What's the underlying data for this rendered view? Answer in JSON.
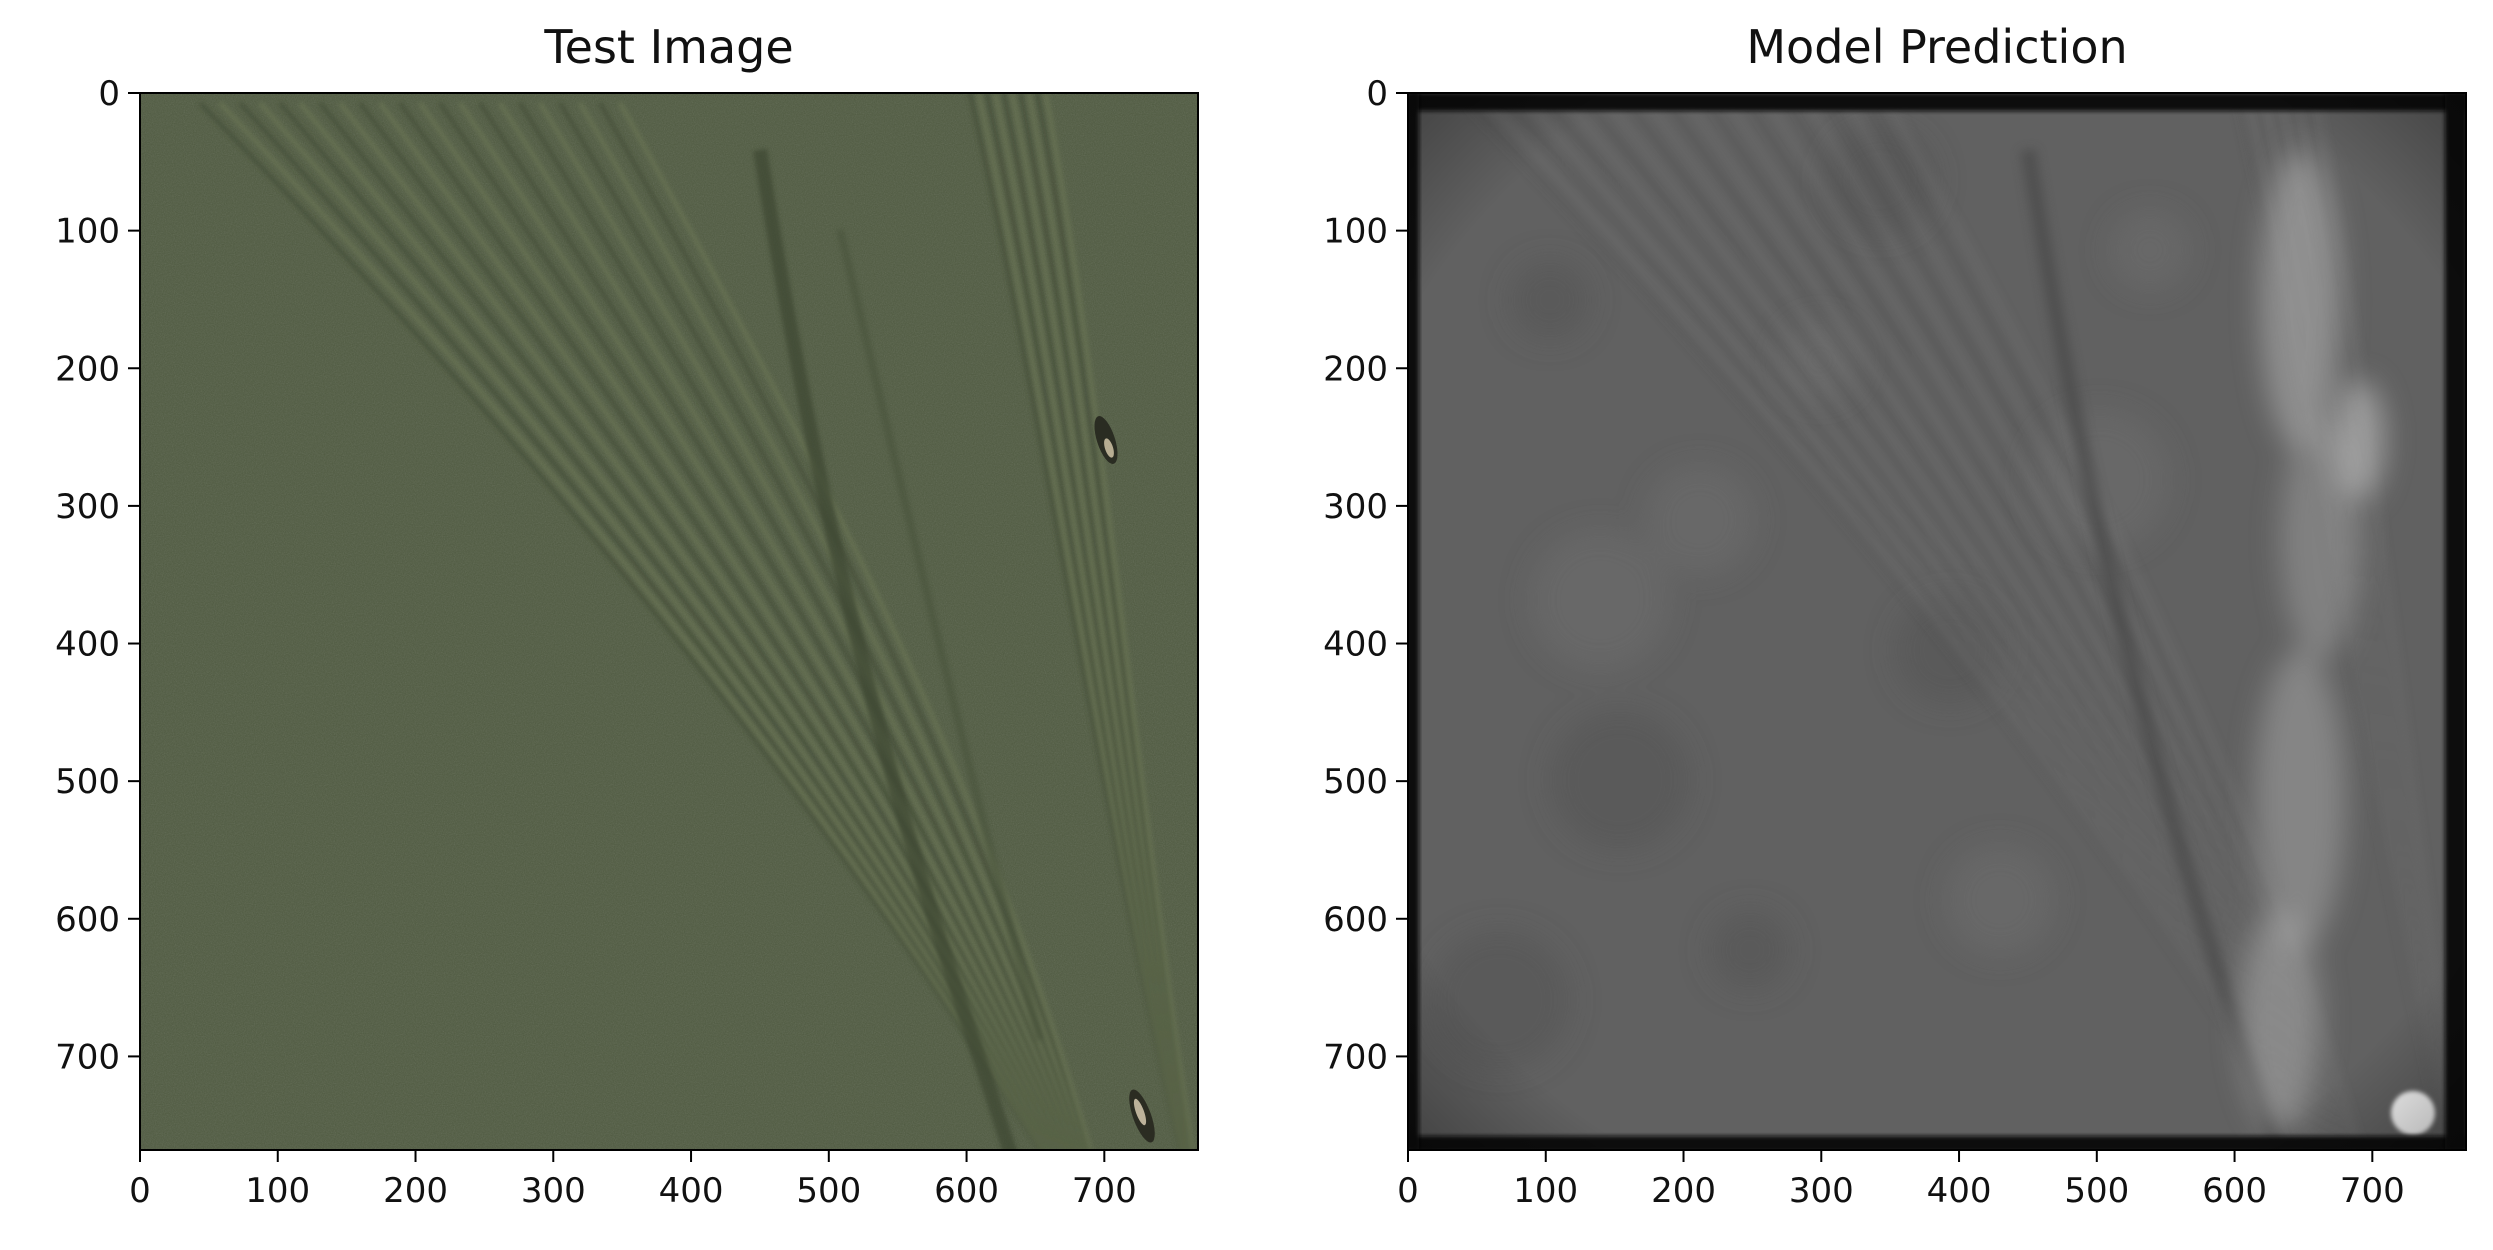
{
  "figure": {
    "panels": [
      {
        "title": "Test Image",
        "x_ticks": [
          "0",
          "100",
          "200",
          "300",
          "400",
          "500",
          "600",
          "700"
        ],
        "y_ticks": [
          "0",
          "100",
          "200",
          "300",
          "400",
          "500",
          "600",
          "700"
        ]
      },
      {
        "title": "Model Prediction",
        "x_ticks": [
          "0",
          "100",
          "200",
          "300",
          "400",
          "500",
          "600",
          "700"
        ],
        "y_ticks": [
          "0",
          "100",
          "200",
          "300",
          "400",
          "500",
          "600",
          "700"
        ]
      }
    ]
  },
  "chart_data": [
    {
      "type": "image",
      "title": "Test Image",
      "xlim": [
        0,
        768
      ],
      "ylim": [
        768,
        0
      ],
      "x_tick_values": [
        0,
        100,
        200,
        300,
        400,
        500,
        600,
        700
      ],
      "y_tick_values": [
        0,
        100,
        200,
        300,
        400,
        500,
        600,
        700
      ],
      "colors": {
        "background": "#4f5a40"
      }
    },
    {
      "type": "image",
      "title": "Model Prediction",
      "xlim": [
        0,
        768
      ],
      "ylim": [
        768,
        0
      ],
      "x_tick_values": [
        0,
        100,
        200,
        300,
        400,
        500,
        600,
        700
      ],
      "y_tick_values": [
        0,
        100,
        200,
        300,
        400,
        500,
        600,
        700
      ],
      "colors": {
        "background": "#616161"
      }
    }
  ]
}
